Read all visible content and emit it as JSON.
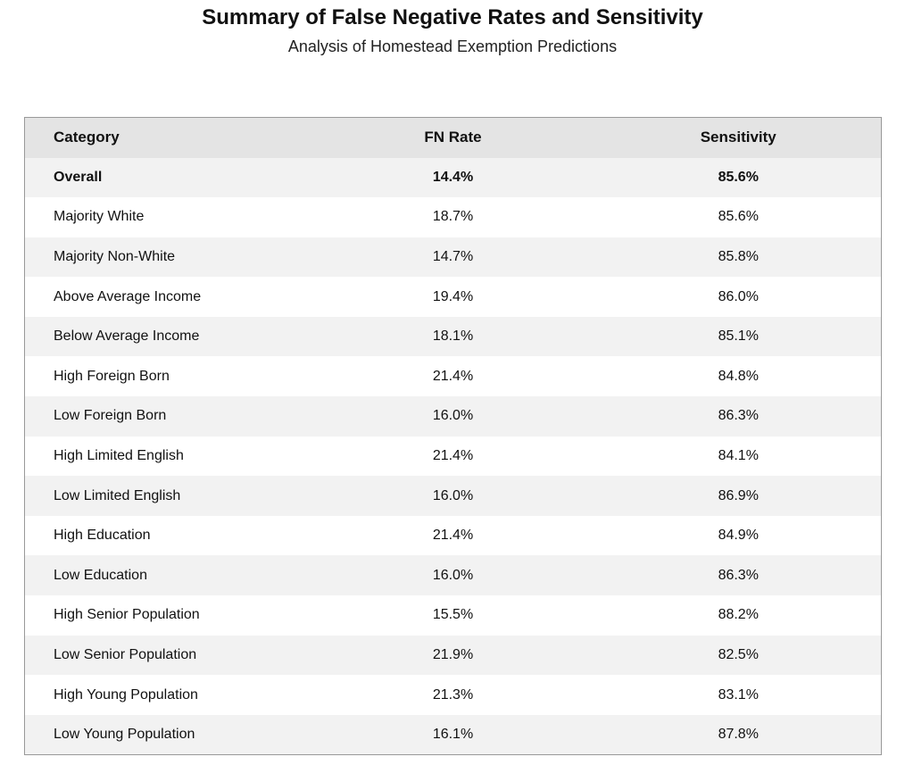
{
  "header": {
    "title": "Summary of False Negative Rates and Sensitivity",
    "subtitle": "Analysis of Homestead Exemption Predictions"
  },
  "table": {
    "columns": [
      "Category",
      "FN Rate",
      "Sensitivity"
    ],
    "rows": [
      [
        "Overall",
        "14.4%",
        "85.6%"
      ],
      [
        "Majority White",
        "18.7%",
        "85.6%"
      ],
      [
        "Majority Non-White",
        "14.7%",
        "85.8%"
      ],
      [
        "Above Average Income",
        "19.4%",
        "86.0%"
      ],
      [
        "Below Average Income",
        "18.1%",
        "85.1%"
      ],
      [
        "High Foreign Born",
        "21.4%",
        "84.8%"
      ],
      [
        "Low Foreign Born",
        "16.0%",
        "86.3%"
      ],
      [
        "High Limited English",
        "21.4%",
        "84.1%"
      ],
      [
        "Low Limited English",
        "16.0%",
        "86.9%"
      ],
      [
        "High Education",
        "21.4%",
        "84.9%"
      ],
      [
        "Low Education",
        "16.0%",
        "86.3%"
      ],
      [
        "High Senior Population",
        "15.5%",
        "88.2%"
      ],
      [
        "Low Senior Population",
        "21.9%",
        "82.5%"
      ],
      [
        "High Young Population",
        "21.3%",
        "83.1%"
      ],
      [
        "Low Young Population",
        "16.1%",
        "87.8%"
      ]
    ]
  }
}
